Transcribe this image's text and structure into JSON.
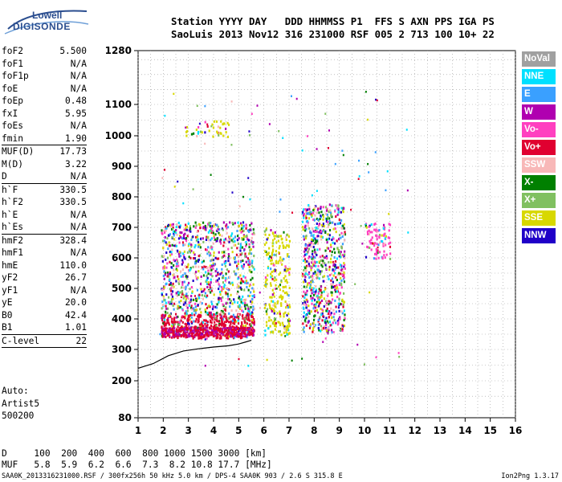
{
  "logo": {
    "line1": "Lowell",
    "line2": "DIGISONDE"
  },
  "header": {
    "line1": "Station YYYY DAY   DDD HHMMSS P1  FFS S AXN PPS IGA PS",
    "line2": "SaoLuis 2013 Nov12 316 231000 RSF 005 2 713 100 10+ 22"
  },
  "params": [
    {
      "k": "foF2",
      "v": "5.500",
      "sep": false
    },
    {
      "k": "foF1",
      "v": "N/A",
      "sep": false
    },
    {
      "k": "foF1p",
      "v": "N/A",
      "sep": false
    },
    {
      "k": "foE",
      "v": "N/A",
      "sep": false
    },
    {
      "k": "foEp",
      "v": "0.48",
      "sep": false
    },
    {
      "k": "fxI",
      "v": "5.95",
      "sep": false
    },
    {
      "k": "foEs",
      "v": "N/A",
      "sep": false
    },
    {
      "k": "fmin",
      "v": "1.90",
      "sep": true
    },
    {
      "k": "MUF(D)",
      "v": "17.73",
      "sep": false
    },
    {
      "k": "M(D)",
      "v": "3.22",
      "sep": false
    },
    {
      "k": "D",
      "v": "N/A",
      "sep": true
    },
    {
      "k": "h`F",
      "v": "330.5",
      "sep": false
    },
    {
      "k": "h`F2",
      "v": "330.5",
      "sep": false
    },
    {
      "k": "h`E",
      "v": "N/A",
      "sep": false
    },
    {
      "k": "h`Es",
      "v": "N/A",
      "sep": true
    },
    {
      "k": "hmF2",
      "v": "328.4",
      "sep": false
    },
    {
      "k": "hmF1",
      "v": "N/A",
      "sep": false
    },
    {
      "k": "hmE",
      "v": "110.0",
      "sep": false
    },
    {
      "k": "yF2",
      "v": "26.7",
      "sep": false
    },
    {
      "k": "yF1",
      "v": "N/A",
      "sep": false
    },
    {
      "k": "yE",
      "v": "20.0",
      "sep": false
    },
    {
      "k": "B0",
      "v": "42.4",
      "sep": false
    },
    {
      "k": "B1",
      "v": "1.01",
      "sep": true
    },
    {
      "k": "C-level",
      "v": "22",
      "sep": true
    }
  ],
  "auto": {
    "line1": "Auto:",
    "line2": "Artist5",
    "line3": "500200"
  },
  "legend": [
    {
      "label": "NoVal",
      "color": "#a0a0a0"
    },
    {
      "label": "NNE",
      "color": "#00e0ff"
    },
    {
      "label": "E",
      "color": "#3aa0ff"
    },
    {
      "label": "W",
      "color": "#b000b0"
    },
    {
      "label": "Vo-",
      "color": "#ff40c0"
    },
    {
      "label": "Vo+",
      "color": "#e00030"
    },
    {
      "label": "SSW",
      "color": "#f8b8b8"
    },
    {
      "label": "X-",
      "color": "#008000"
    },
    {
      "label": "X+",
      "color": "#80c060"
    },
    {
      "label": "SSE",
      "color": "#d8d800"
    },
    {
      "label": "NNW",
      "color": "#2000c8"
    }
  ],
  "bottom": {
    "line1": "D     100  200  400  600  800 1000 1500 3000 [km]",
    "line2": "MUF   5.8  5.9  6.2  6.6  7.3  8.2 10.8 17.7 [MHz]"
  },
  "footer": {
    "left": "SAA0K_2013316231000.RSF / 300fx256h 50 kHz 5.0 km / DPS-4 SAA0K 903 / 2.6 S 315.8 E",
    "right": "Ion2Png 1.3.17"
  },
  "chart_data": {
    "type": "scatter",
    "xlabel": "",
    "ylabel": "",
    "x_ticks": [
      1,
      2,
      3,
      4,
      5,
      6,
      7,
      8,
      9,
      10,
      11,
      12,
      13,
      14,
      15,
      16
    ],
    "y_ticks": [
      80,
      200,
      300,
      400,
      500,
      600,
      700,
      800,
      900,
      1000,
      1100,
      1280
    ],
    "xlim": [
      1,
      16
    ],
    "y_scale": "log-like (ionogram virtual height)",
    "ylim": [
      80,
      1280
    ],
    "grid": true,
    "clusters": [
      {
        "name": "O-trace F region",
        "x_range": [
          1.9,
          5.6
        ],
        "y_range": [
          340,
          420
        ],
        "dominant": "Vo+"
      },
      {
        "name": "spread F lower",
        "x_range": [
          1.9,
          5.6
        ],
        "y_range": [
          420,
          720
        ],
        "dominant": "mixed"
      },
      {
        "name": "spread F 6-7 MHz",
        "x_range": [
          6.0,
          7.0
        ],
        "y_range": [
          350,
          700
        ],
        "dominant": "SSE"
      },
      {
        "name": "spread F 7.5-9 MHz",
        "x_range": [
          7.5,
          9.2
        ],
        "y_range": [
          360,
          780
        ],
        "dominant": "mixed"
      },
      {
        "name": "spread F 10-11 MHz",
        "x_range": [
          10.0,
          11.0
        ],
        "y_range": [
          600,
          720
        ],
        "dominant": "Vo-"
      },
      {
        "name": "second hop",
        "x_range": [
          2.8,
          4.6
        ],
        "y_range": [
          1000,
          1050
        ],
        "dominant": "SSE"
      }
    ],
    "profile": {
      "name": "electron density profile",
      "x": [
        1.0,
        1.6,
        2.2,
        2.8,
        3.4,
        4.0,
        4.6,
        5.0,
        5.3,
        5.5
      ],
      "y": [
        240,
        255,
        280,
        295,
        302,
        308,
        312,
        318,
        325,
        330
      ]
    }
  }
}
